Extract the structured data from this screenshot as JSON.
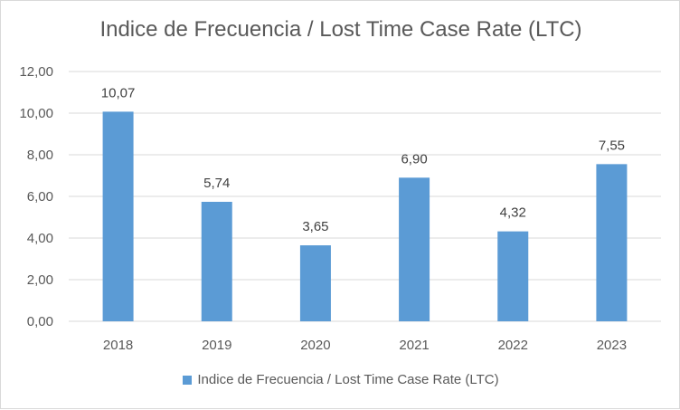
{
  "chart_data": {
    "type": "bar",
    "title": "Indice de Frecuencia / Lost Time Case Rate (LTC)",
    "categories": [
      "2018",
      "2019",
      "2020",
      "2021",
      "2022",
      "2023"
    ],
    "series": [
      {
        "name": "Indice de Frecuencia / Lost Time Case Rate (LTC)",
        "values": [
          10.07,
          5.74,
          3.65,
          6.9,
          4.32,
          7.55
        ],
        "labels": [
          "10,07",
          "5,74",
          "3,65",
          "6,90",
          "4,32",
          "7,55"
        ]
      }
    ],
    "yticks": [
      "0,00",
      "2,00",
      "4,00",
      "6,00",
      "8,00",
      "10,00",
      "12,00"
    ],
    "ylim": [
      0,
      12
    ],
    "grid": true,
    "legend": "bottom",
    "bar_color": "#5b9bd5",
    "grid_color": "#d9d9d9"
  }
}
